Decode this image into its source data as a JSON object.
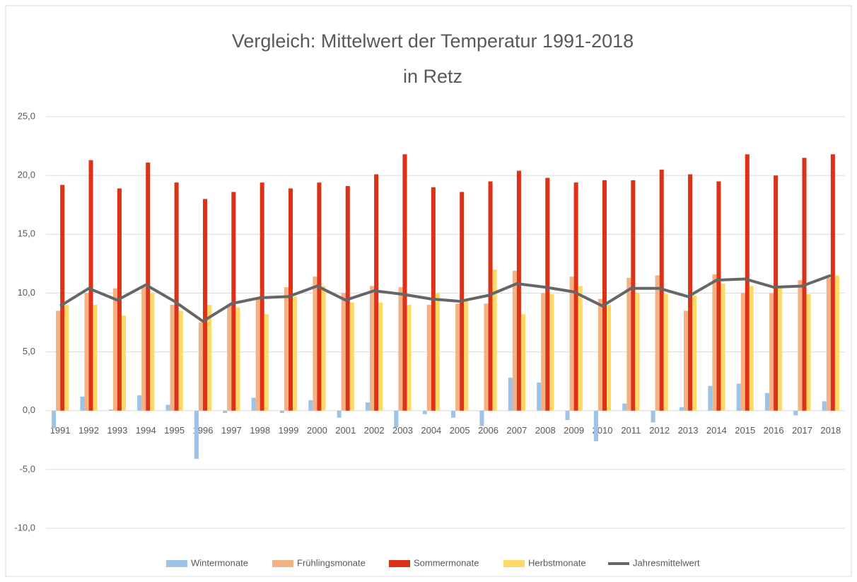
{
  "chart_data": {
    "type": "bar_line",
    "title": [
      "Vergleich: Mittelwert der Temperatur 1991-2018",
      "in Retz"
    ],
    "categories": [
      "1991",
      "1992",
      "1993",
      "1994",
      "1995",
      "1996",
      "1997",
      "1998",
      "1999",
      "2000",
      "2001",
      "2002",
      "2003",
      "2004",
      "2005",
      "2006",
      "2007",
      "2008",
      "2009",
      "2010",
      "2011",
      "2012",
      "2013",
      "2014",
      "2015",
      "2016",
      "2017",
      "2018"
    ],
    "series": [
      {
        "name": "Wintermonate",
        "type": "bar",
        "color": "#9dc3e6",
        "values": [
          -1.5,
          1.2,
          0.1,
          1.3,
          0.5,
          -4.1,
          -0.2,
          1.1,
          -0.2,
          0.9,
          -0.6,
          0.7,
          -1.4,
          -0.3,
          -0.6,
          -1.3,
          2.8,
          2.4,
          -0.8,
          -2.6,
          0.6,
          -1.0,
          0.3,
          2.1,
          2.3,
          1.5,
          -0.4,
          0.8
        ]
      },
      {
        "name": "Frühlingsmonate",
        "type": "bar",
        "color": "#f4b183",
        "values": [
          8.5,
          10.0,
          10.4,
          10.5,
          9.0,
          7.5,
          9.0,
          9.6,
          10.5,
          11.4,
          10.0,
          10.6,
          10.5,
          9.0,
          9.1,
          9.1,
          11.9,
          10.0,
          11.4,
          9.5,
          11.3,
          11.5,
          8.5,
          11.6,
          10.0,
          10.0,
          11.1,
          11.3
        ]
      },
      {
        "name": "Sommermonate",
        "type": "bar",
        "color": "#dc3218",
        "values": [
          19.2,
          21.3,
          18.9,
          21.1,
          19.4,
          18.0,
          18.6,
          19.4,
          18.9,
          19.4,
          19.1,
          20.1,
          21.8,
          19.0,
          18.6,
          19.5,
          20.4,
          19.8,
          19.4,
          19.6,
          19.6,
          20.5,
          20.1,
          19.5,
          21.8,
          20.0,
          21.5,
          21.8
        ]
      },
      {
        "name": "Herbstmonate",
        "type": "bar",
        "color": "#ffd966",
        "values": [
          9.0,
          9.0,
          8.1,
          10.0,
          8.5,
          9.0,
          8.8,
          8.2,
          9.7,
          10.6,
          9.2,
          9.2,
          9.0,
          10.0,
          9.5,
          12.0,
          8.2,
          9.9,
          10.6,
          9.0,
          10.0,
          9.9,
          9.8,
          10.8,
          10.6,
          10.4,
          9.9,
          11.5
        ]
      },
      {
        "name": "Jahresmittelwert",
        "type": "line",
        "color": "#666666",
        "values": [
          8.9,
          10.4,
          9.4,
          10.7,
          9.3,
          7.6,
          9.1,
          9.6,
          9.7,
          10.6,
          9.4,
          10.2,
          9.9,
          9.5,
          9.3,
          9.8,
          10.8,
          10.5,
          10.1,
          8.9,
          10.4,
          10.4,
          9.7,
          11.1,
          11.2,
          10.5,
          10.6,
          11.5
        ]
      }
    ],
    "ylim": [
      -10,
      25
    ],
    "yticks": [
      {
        "value": -10,
        "label": "-10,0"
      },
      {
        "value": -5,
        "label": "-5,0"
      },
      {
        "value": 0,
        "label": "0,0"
      },
      {
        "value": 5,
        "label": "5,0"
      },
      {
        "value": 10,
        "label": "10,0"
      },
      {
        "value": 15,
        "label": "15,0"
      },
      {
        "value": 20,
        "label": "20,0"
      },
      {
        "value": 25,
        "label": "25,0"
      }
    ],
    "grid": true,
    "legend": "bottom"
  }
}
